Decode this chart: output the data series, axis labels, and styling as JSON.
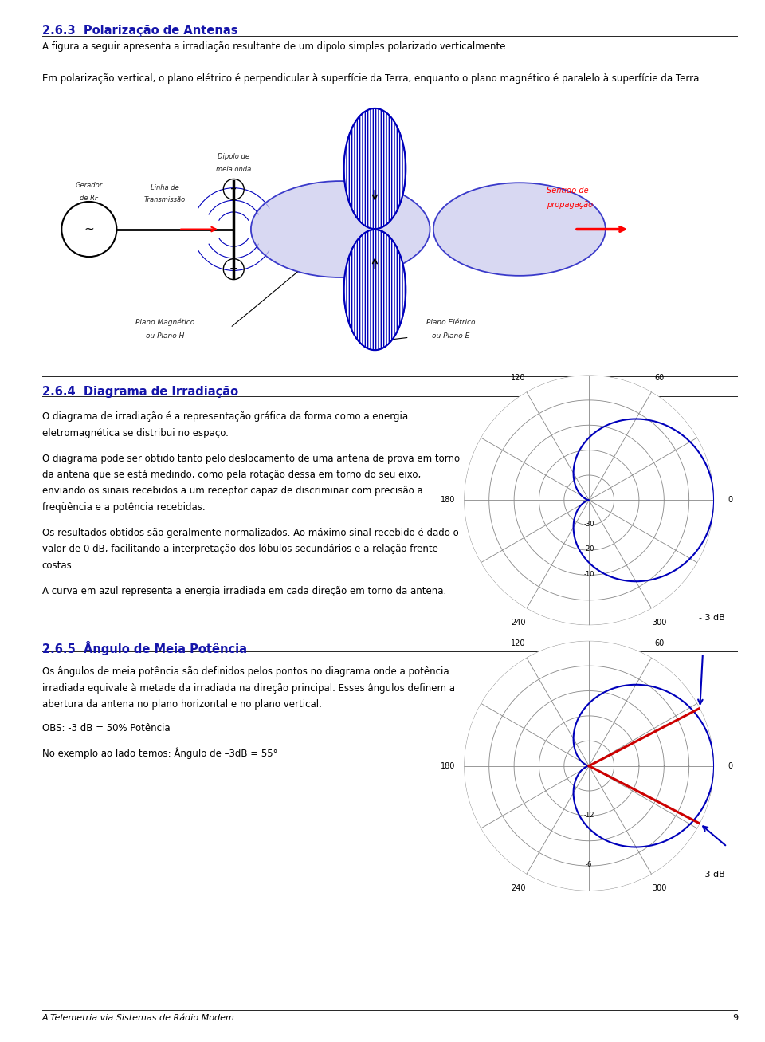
{
  "bg_color": "#ffffff",
  "page_width": 9.6,
  "page_height": 13.07,
  "section_263_title": "2.6.3  Polarização de Antenas",
  "section_264_title": "2.6.4  Diagrama de Irradiação",
  "section_265_title": "2.6.5  Ângulo de Meia Potência",
  "text_263_1": "A figura a seguir apresenta a irradiação resultante de um dipolo simples polarizado verticalmente.",
  "text_263_2": "Em polarização vertical, o plano elétrico é perpendicular à superfície da Terra, enquanto o plano magnético é paralelo à superfície da Terra.",
  "text_264_1a": "O diagrama de irradiação é a representação gráfica da forma como a energia",
  "text_264_1b": "eletromagnética se distribui no espaço.",
  "text_264_2a": "O diagrama pode ser obtido tanto pelo deslocamento de uma antena de prova em torno",
  "text_264_2b": "da antena que se está medindo, como pela rotação dessa em torno do seu eixo,",
  "text_264_2c": "enviando os sinais recebidos a um receptor capaz de discriminar com precisão a",
  "text_264_2d": "freqüência e a potência recebidas.",
  "text_264_3a": "Os resultados obtidos são geralmente normalizados. Ao máximo sinal recebido é dado o",
  "text_264_3b": "valor de 0 dB, facilitando a interpretação dos lóbulos secundários e a relação frente-",
  "text_264_3c": "costas.",
  "text_264_4": "A curva em azul representa a energia irradiada em cada direção em torno da antena.",
  "text_265_1a": "Os ângulos de meia potência são definidos pelos pontos no diagrama onde a potência",
  "text_265_1b": "irradiada equivale à metade da irradiada na direção principal. Esses ângulos definem a",
  "text_265_1c": "abertura da antena no plano horizontal e no plano vertical.",
  "text_265_2": "OBS: -3 dB = 50% Potência",
  "text_265_3": "No exemplo ao lado temos: Ângulo de –3dB = 55°",
  "footer_text": "A Telemetria via Sistemas de Rádio Modem",
  "footer_page": "9",
  "blue_color": "#0000bb",
  "red_color": "#cc0000",
  "gray_color": "#888888",
  "dark_color": "#222222",
  "title_blue": "#1515aa",
  "section_line_color": "#000000"
}
